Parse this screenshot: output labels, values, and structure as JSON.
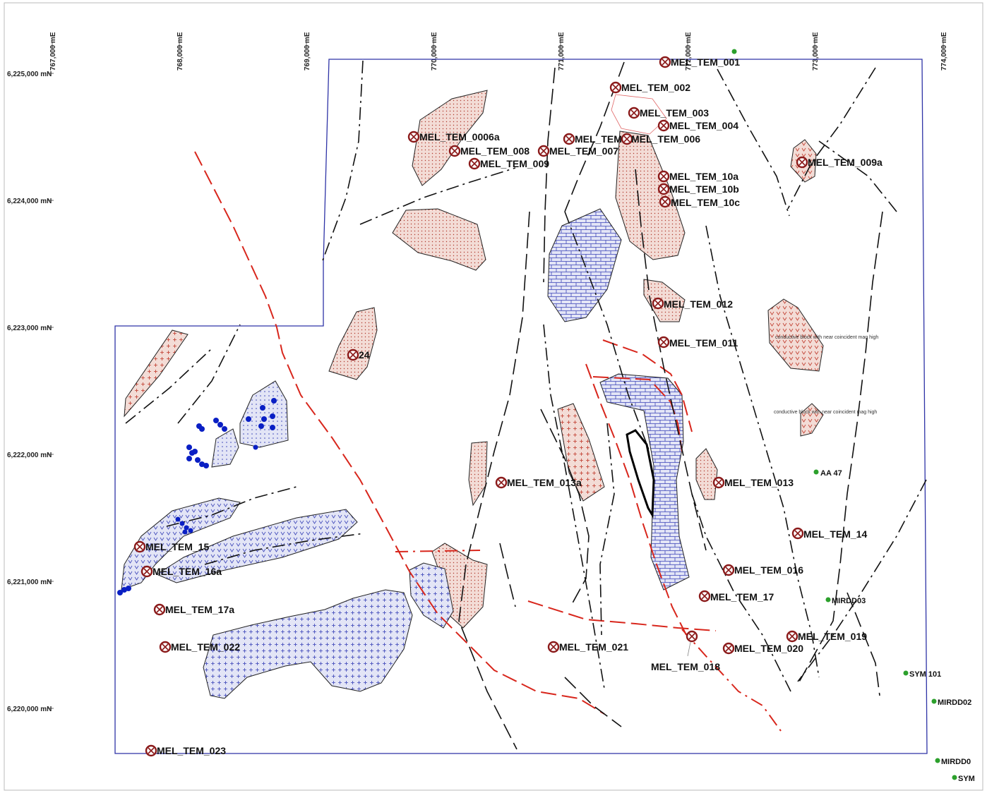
{
  "colors": {
    "boundary": "#2e33a6",
    "fault_red": "#d8261c",
    "fault_black": "#111111",
    "pink_fill": "#f3dcd6",
    "pink_pattern": "#c0392b",
    "blue_fill": "#dfe2f4",
    "blue_pattern": "#3a43b8",
    "target_marker": "#8b1a1a",
    "drillhole": "#2ca02c",
    "dot_blue": "#0a1fc4"
  },
  "easting_labels": [
    "767,000 mE",
    "768,000 mE",
    "769,000 mE",
    "770,000 mE",
    "771,000 mE",
    "772,000 mE",
    "773,000 mE",
    "774,000 mE"
  ],
  "northing_labels": [
    "6,225,000 mN",
    "6,224,000 mN",
    "6,223,000 mN",
    "6,222,000 mN",
    "6,221,000 mN",
    "6,220,000 mN"
  ],
  "targets": [
    "MEL_TEM_001",
    "MEL_TEM_002",
    "MEL_TEM_003",
    "MEL_TEM_004",
    "MEL_TEM_0006a",
    "MEL_TEM_008",
    "MEL_TEM_009",
    "MEL_TEM_007",
    "MEL_TEM",
    "MEL_TEM_006",
    "MEL_TEM_009a",
    "MEL_TEM_10a",
    "MEL_TEM_10b",
    "MEL_TEM_10c",
    "MEL_TEM_012",
    "MEL_TEM_011",
    "24",
    "MEL_TEM_013a",
    "MEL_TEM_013",
    "MEL_TEM_14",
    "MEL_TEM_15",
    "MEL_TEM_16a",
    "MEL_TEM_016",
    "MEL_TEM_17",
    "MEL_TEM_17a",
    "MEL_TEM_019",
    "MEL_TEM_022",
    "MEL_TEM_021",
    "MEL_TEM_020",
    "MEL_TEM_018",
    "MEL_TEM_023"
  ],
  "drillholes": [
    "AA 47",
    "MIRDD03",
    "SYM 101",
    "MIRDD02",
    "MIRDD0",
    "SYM"
  ],
  "notes": [
    "conductive block with near coincident mag high",
    "conductive block with near coincident mag high"
  ]
}
